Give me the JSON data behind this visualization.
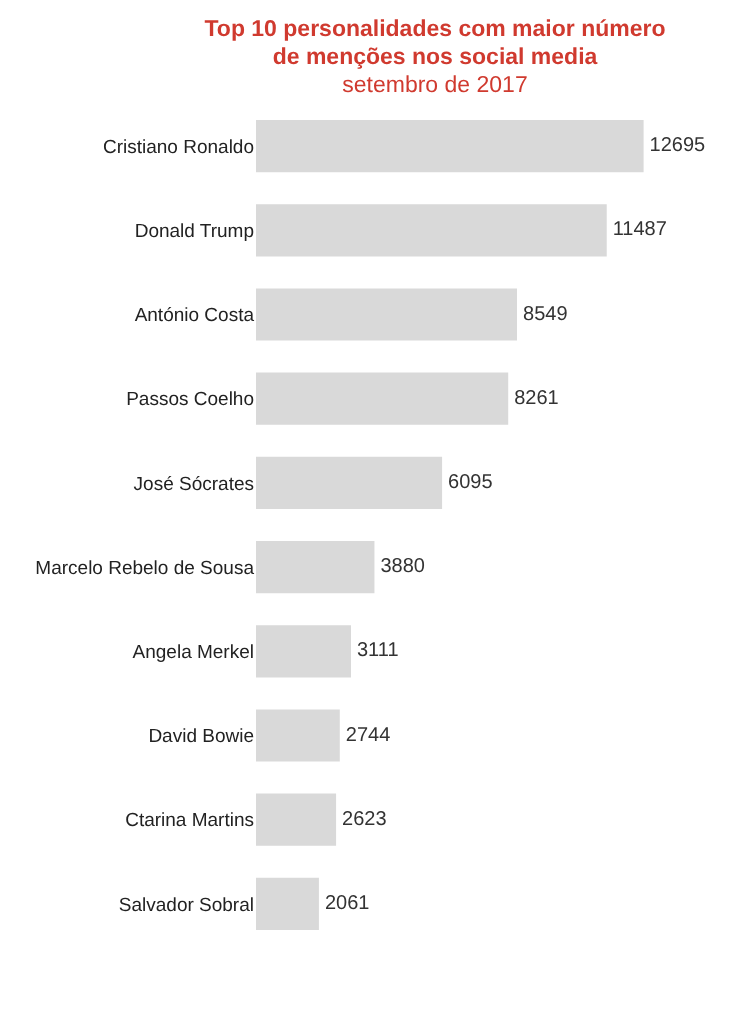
{
  "chart_data": {
    "type": "bar",
    "title": "Top 10 personalidades com maior número de menções nos social media",
    "subtitle": "setembro de 2017",
    "orientation": "horizontal",
    "categories": [
      "Cristiano Ronaldo",
      "Donald Trump",
      "António Costa",
      "Passos Coelho",
      "José Sócrates",
      "Marcelo Rebelo de Sousa",
      "Angela Merkel",
      "David Bowie",
      "Ctarina Martins",
      "Salvador Sobral"
    ],
    "values": [
      12695,
      11487,
      8549,
      8261,
      6095,
      3880,
      3111,
      2744,
      2623,
      2061
    ],
    "color": "#d9d9d9",
    "data_labels": true,
    "grid": false,
    "legend": false
  }
}
